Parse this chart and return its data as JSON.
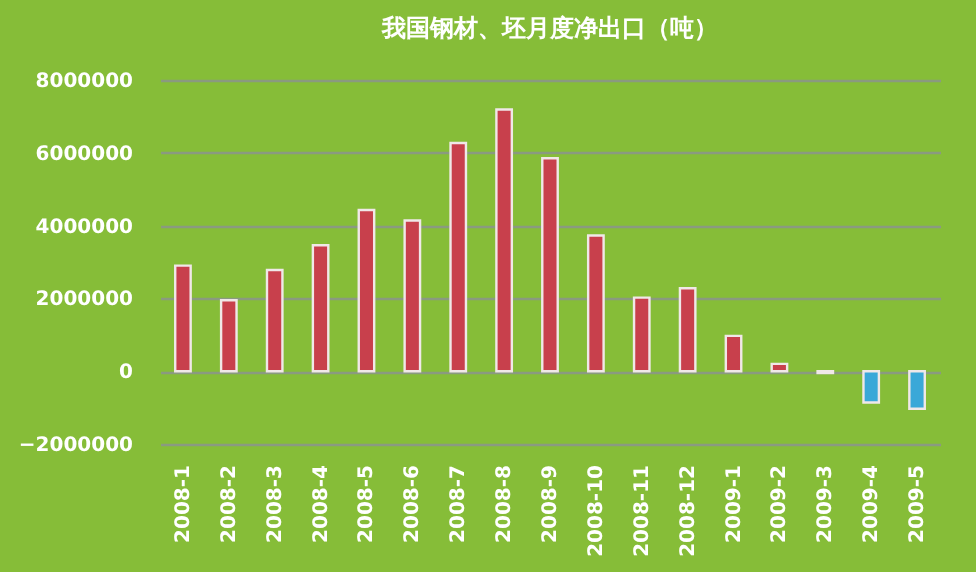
{
  "chart_data": {
    "type": "bar",
    "title": "我国钢材、坯月度净出口（吨）",
    "categories": [
      "2008-1",
      "2008-2",
      "2008-3",
      "2008-4",
      "2008-5",
      "2008-6",
      "2008-7",
      "2008-8",
      "2008-9",
      "2008-10",
      "2008-11",
      "2008-12",
      "2009-1",
      "2009-2",
      "2009-3",
      "2009-4",
      "2009-5"
    ],
    "values": [
      2900000,
      1950000,
      2780000,
      3460000,
      4430000,
      4140000,
      6270000,
      7190000,
      5850000,
      3730000,
      2020000,
      2280000,
      970000,
      200000,
      -50000,
      -860000,
      -1030000
    ],
    "colors": [
      "#c8404c",
      "#c8404c",
      "#c8404c",
      "#c8404c",
      "#c8404c",
      "#c8404c",
      "#c8404c",
      "#c8404c",
      "#c8404c",
      "#c8404c",
      "#c8404c",
      "#c8404c",
      "#c8404c",
      "#c8404c",
      "#3aa8d8",
      "#3aa8d8",
      "#3aa8d8"
    ],
    "ylim": [
      -2000000,
      8000000
    ],
    "yticks": [
      -2000000,
      0,
      2000000,
      4000000,
      6000000,
      8000000
    ],
    "grid": "y"
  }
}
